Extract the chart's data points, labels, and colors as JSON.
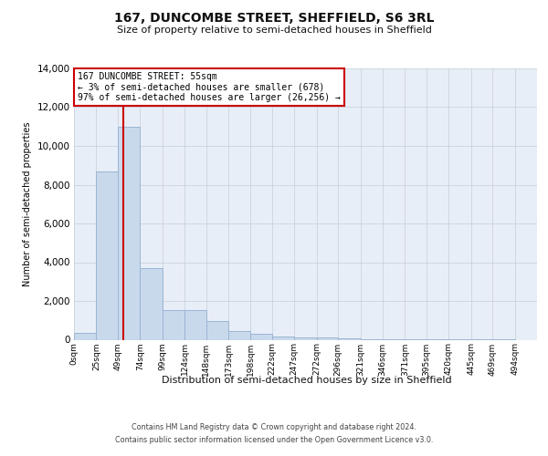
{
  "title_line1": "167, DUNCOMBE STREET, SHEFFIELD, S6 3RL",
  "title_line2": "Size of property relative to semi-detached houses in Sheffield",
  "xlabel": "Distribution of semi-detached houses by size in Sheffield",
  "ylabel": "Number of semi-detached properties",
  "footer_line1": "Contains HM Land Registry data © Crown copyright and database right 2024.",
  "footer_line2": "Contains public sector information licensed under the Open Government Licence v3.0.",
  "annotation_line1": "167 DUNCOMBE STREET: 55sqm",
  "annotation_line2": "← 3% of semi-detached houses are smaller (678)",
  "annotation_line3": "97% of semi-detached houses are larger (26,256) →",
  "property_size": 55,
  "bar_face_color": "#c9d9ec",
  "bar_edge_color": "#9ab5d4",
  "vline_color": "#cc0000",
  "bg_color": "#e8eef7",
  "categories": [
    "0sqm",
    "25sqm",
    "49sqm",
    "74sqm",
    "99sqm",
    "124sqm",
    "148sqm",
    "173sqm",
    "198sqm",
    "222sqm",
    "247sqm",
    "272sqm",
    "296sqm",
    "321sqm",
    "346sqm",
    "371sqm",
    "395sqm",
    "420sqm",
    "445sqm",
    "469sqm",
    "494sqm"
  ],
  "bin_edges": [
    0,
    25,
    49,
    74,
    99,
    124,
    148,
    173,
    198,
    222,
    247,
    272,
    296,
    321,
    346,
    371,
    395,
    420,
    445,
    469,
    494,
    519
  ],
  "values": [
    350,
    8700,
    11000,
    3700,
    1550,
    1550,
    950,
    450,
    300,
    175,
    100,
    100,
    50,
    30,
    15,
    10,
    5,
    3,
    2,
    1,
    0
  ],
  "ylim": [
    0,
    14000
  ],
  "yticks": [
    0,
    2000,
    4000,
    6000,
    8000,
    10000,
    12000,
    14000
  ]
}
